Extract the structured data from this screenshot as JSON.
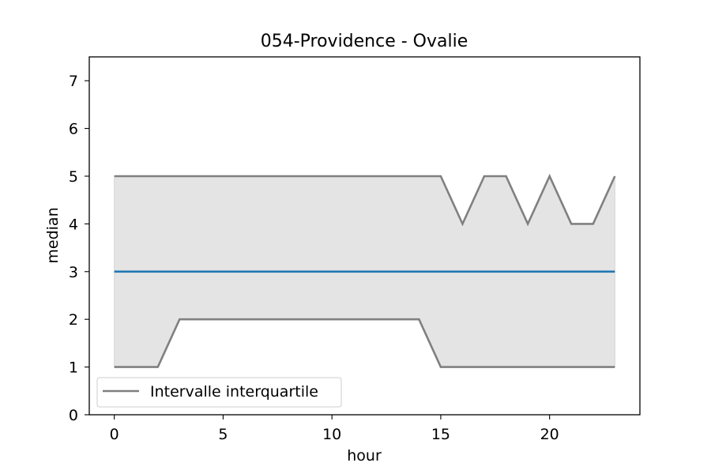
{
  "chart_data": {
    "type": "line",
    "title": "054-Providence - Ovalie",
    "xlabel": "hour",
    "ylabel": "median",
    "xlim": [
      -1.15,
      24.15
    ],
    "ylim": [
      0,
      7.5
    ],
    "xticks": [
      0,
      5,
      10,
      15,
      20
    ],
    "yticks": [
      0,
      1,
      2,
      3,
      4,
      5,
      6,
      7
    ],
    "grid": false,
    "legend_position": "lower left",
    "x": [
      0,
      1,
      2,
      3,
      4,
      5,
      6,
      7,
      8,
      9,
      10,
      11,
      12,
      13,
      14,
      15,
      16,
      17,
      18,
      19,
      20,
      21,
      22,
      23
    ],
    "series": [
      {
        "role": "median",
        "color": "#1f77b4",
        "values": [
          3,
          3,
          3,
          3,
          3,
          3,
          3,
          3,
          3,
          3,
          3,
          3,
          3,
          3,
          3,
          3,
          3,
          3,
          3,
          3,
          3,
          3,
          3,
          3
        ]
      },
      {
        "role": "q1",
        "name": "Intervalle interquartile",
        "color": "#808080",
        "values": [
          1,
          1,
          1,
          2,
          2,
          2,
          2,
          2,
          2,
          2,
          2,
          2,
          2,
          2,
          2,
          1,
          1,
          1,
          1,
          1,
          1,
          1,
          1,
          1
        ]
      },
      {
        "role": "q3",
        "color": "#808080",
        "values": [
          5,
          5,
          5,
          5,
          5,
          5,
          5,
          5,
          5,
          5,
          5,
          5,
          5,
          5,
          5,
          5,
          4,
          5,
          5,
          4,
          5,
          4,
          4,
          5
        ]
      }
    ],
    "fill_between": {
      "lower": "q1",
      "upper": "q3",
      "color": "#e4e4e4"
    },
    "legend": [
      {
        "label": "Intervalle interquartile",
        "color": "#808080"
      }
    ]
  }
}
